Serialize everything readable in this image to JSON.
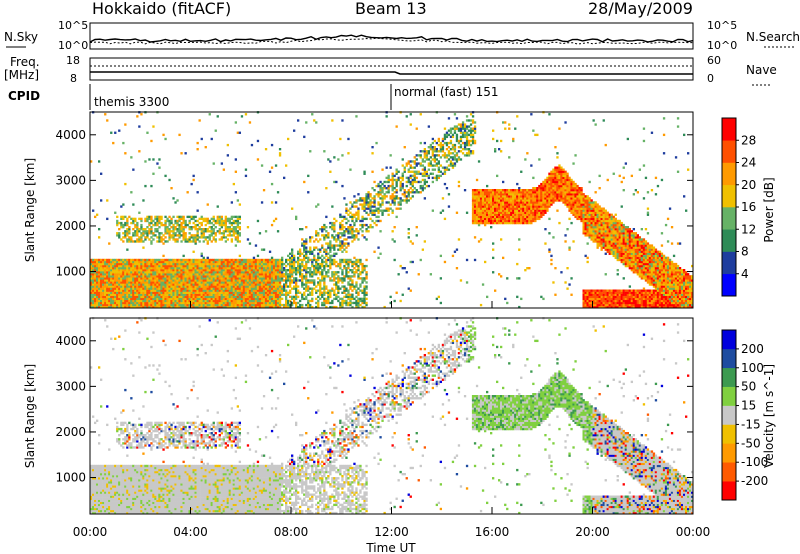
{
  "header": {
    "station": "Hokkaido (fitACF)",
    "beam": "Beam 13",
    "date": "28/May/2009"
  },
  "strip_labels": {
    "nsky": "N.Sky",
    "nsearch": "N.Search",
    "freq": "Freq.",
    "freq_unit": "[MHz]",
    "nave": "Nave",
    "cpid": "CPID",
    "nsky_ticks": [
      "10^5",
      "10^0"
    ],
    "nsearch_ticks": [
      "10^5",
      "10^0"
    ],
    "freq_ticks": [
      "18",
      "8"
    ],
    "nave_ticks": [
      "60",
      "0"
    ]
  },
  "cpid_segments": [
    {
      "label": "themis 3300",
      "start_hour": 0
    },
    {
      "label": "normal (fast) 151",
      "start_hour": 12
    }
  ],
  "colors": {
    "power": [
      "#0000ff",
      "#1e3d9e",
      "#2e8b57",
      "#66b266",
      "#f0c000",
      "#ff9a00",
      "#ff5000",
      "#ff0000"
    ],
    "velocity": [
      "#ff0000",
      "#ff5a00",
      "#ff9a00",
      "#f0c000",
      "#c8c8c8",
      "#80d040",
      "#3c9a50",
      "#1e4ca0",
      "#0000dd"
    ]
  },
  "chart_data": [
    {
      "type": "heatmap",
      "panel": "power",
      "xlabel": "",
      "ylabel": "Slant Range [km]",
      "xlim": [
        0,
        24
      ],
      "ylim": [
        200,
        4500
      ],
      "yticks": [
        1000,
        2000,
        3000,
        4000
      ],
      "colorbar": {
        "label": "Power [dB]",
        "ticks": [
          4,
          8,
          12,
          16,
          20,
          24,
          28
        ],
        "range": [
          0,
          32
        ]
      },
      "features": [
        {
          "name": "near-range ground scatter",
          "x": [
            0,
            7.5
          ],
          "y": [
            300,
            1200
          ],
          "value_db": 18
        },
        {
          "name": "afternoon band",
          "x": [
            15.3,
            19.6
          ],
          "y": [
            1800,
            2700
          ],
          "value_db": 26
        },
        {
          "name": "evening slope",
          "x": [
            19.6,
            24
          ],
          "y": [
            300,
            2200
          ],
          "value_db": 22
        }
      ]
    },
    {
      "type": "heatmap",
      "panel": "velocity",
      "xlabel": "Time UT",
      "ylabel": "Slant Range [km]",
      "xlim": [
        0,
        24
      ],
      "ylim": [
        200,
        4500
      ],
      "xticks": [
        "00:00",
        "04:00",
        "08:00",
        "12:00",
        "16:00",
        "20:00",
        "00:00"
      ],
      "yticks": [
        1000,
        2000,
        3000,
        4000
      ],
      "colorbar": {
        "label": "Velocity [m s^-1]",
        "ticks": [
          200,
          100,
          50,
          15,
          -15,
          -50,
          -100,
          -200
        ]
      }
    }
  ]
}
